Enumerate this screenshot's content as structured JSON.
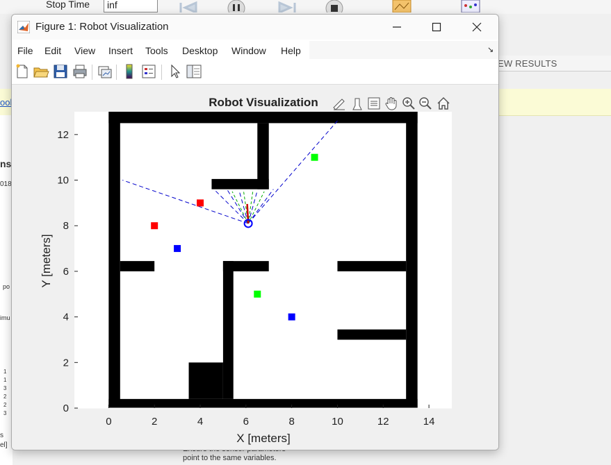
{
  "background": {
    "stop_time_label": "Stop Time",
    "stop_time_value": "inf",
    "tab_fragment": "EW RESULTS",
    "yellow_link_fragment": "ool",
    "left_fragments": [
      "ns",
      "018",
      "po",
      "imu",
      "1",
      "1",
      "3",
      "2",
      "2",
      "3",
      "s",
      "el]"
    ],
    "bottom_text_line1": "Ensure the sensor parameters",
    "bottom_text_line2": "point to the same variables."
  },
  "window": {
    "title": "Figure 1: Robot Visualization",
    "minimize_icon": "minimize-icon",
    "maximize_icon": "maximize-icon",
    "close_icon": "close-icon"
  },
  "menu": [
    "File",
    "Edit",
    "View",
    "Insert",
    "Tools",
    "Desktop",
    "Window",
    "Help"
  ],
  "toolbar_icons": [
    "new-figure-icon",
    "open-file-icon",
    "save-icon",
    "print-icon",
    "link-plot-icon",
    "colorbar-icon",
    "legend-icon",
    "edit-plot-icon",
    "property-editor-icon"
  ],
  "axes_toolbar_icons": [
    "brush-export-icon",
    "data-tips-icon",
    "restore-view-icon",
    "pan-icon",
    "zoom-in-icon",
    "zoom-out-icon",
    "home-icon"
  ],
  "colors": {
    "obstacle": "#000000",
    "red_marker": "#ff0000",
    "blue_marker": "#0000ff",
    "green_marker": "#00ff00",
    "lidar_ray": "#0000cc",
    "sensor_ray": "#00aa00",
    "robot": "#0000ff",
    "heading": "#cc0000"
  },
  "chart_data": {
    "type": "scatter",
    "title": "Robot Visualization",
    "xlabel": "X [meters]",
    "ylabel": "Y [meters]",
    "xlim": [
      -1.5,
      15
    ],
    "ylim": [
      0,
      13
    ],
    "xticks": [
      0,
      2,
      4,
      6,
      8,
      10,
      12,
      14
    ],
    "yticks": [
      0,
      2,
      4,
      6,
      8,
      10,
      12
    ],
    "map_extent": {
      "x": [
        0,
        13.5
      ],
      "y": [
        0,
        13
      ]
    },
    "walls": [
      [
        0,
        0,
        0.5,
        13
      ],
      [
        13,
        0,
        0.5,
        13
      ],
      [
        0,
        12.5,
        13.5,
        0.5
      ],
      [
        0,
        0,
        13.5,
        0.4
      ],
      [
        6.5,
        9.6,
        0.5,
        2.9
      ],
      [
        4.5,
        9.6,
        2.5,
        0.45
      ],
      [
        0.5,
        6.0,
        1.5,
        0.45
      ],
      [
        5.0,
        0.4,
        0.45,
        6.05
      ],
      [
        5.0,
        6.0,
        2.0,
        0.45
      ],
      [
        10.0,
        6.0,
        3.0,
        0.45
      ],
      [
        10.0,
        3.0,
        3.0,
        0.45
      ],
      [
        3.5,
        0.4,
        1.5,
        1.6
      ]
    ],
    "series": [
      {
        "color": "red",
        "points": [
          [
            2,
            8
          ],
          [
            4,
            9
          ]
        ]
      },
      {
        "color": "blue",
        "points": [
          [
            3,
            7
          ],
          [
            8,
            4
          ]
        ]
      },
      {
        "color": "green",
        "points": [
          [
            9,
            11
          ],
          [
            6.5,
            5
          ]
        ]
      }
    ],
    "robot": {
      "x": 6.1,
      "y": 8.1,
      "heading_deg": 93
    },
    "lidar_rays": [
      [
        0.6,
        10.0
      ],
      [
        4.6,
        9.6
      ],
      [
        5.2,
        9.55
      ],
      [
        5.7,
        9.55
      ],
      [
        6.5,
        9.55
      ],
      [
        7.2,
        9.6
      ],
      [
        10.0,
        12.6
      ]
    ],
    "sensor_rays": [
      [
        5.4,
        9.5
      ],
      [
        5.9,
        9.5
      ],
      [
        6.3,
        9.5
      ],
      [
        6.8,
        9.5
      ]
    ]
  }
}
